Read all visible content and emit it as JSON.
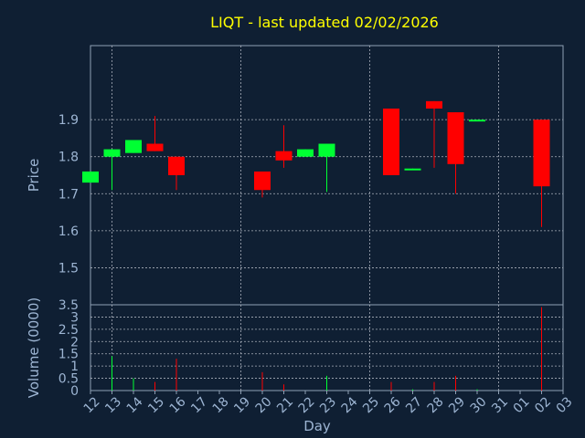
{
  "chart_data": {
    "type": "candlestick",
    "title": "LIQT - last updated 02/02/2026",
    "colors": {
      "background": "#0f1f33",
      "plot_background": "#0f1f33",
      "text_title": "#ffff00",
      "text_axis": "#9db5d3",
      "up": "#00ff33",
      "down": "#ff0000",
      "grid": "#aab0bb",
      "frame": "#8fa0b4"
    },
    "x_tick_labels": [
      "12",
      "13",
      "14",
      "15",
      "16",
      "17",
      "18",
      "19",
      "20",
      "21",
      "22",
      "23",
      "24",
      "25",
      "26",
      "27",
      "28",
      "29",
      "30",
      "31",
      "01",
      "02",
      "03"
    ],
    "xlabel": "Day",
    "price_panel": {
      "ylabel": "Price",
      "ylim": [
        1.4,
        2.1
      ],
      "yticks": [
        1.5,
        1.6,
        1.7,
        1.8,
        1.9
      ],
      "candles": [
        {
          "slot": 0,
          "open": 1.73,
          "close": 1.76,
          "high": 1.76,
          "low": 1.73
        },
        {
          "slot": 1,
          "open": 1.8,
          "close": 1.82,
          "high": 1.82,
          "low": 1.71
        },
        {
          "slot": 2,
          "open": 1.81,
          "close": 1.845,
          "high": 1.845,
          "low": 1.81
        },
        {
          "slot": 3,
          "open": 1.835,
          "close": 1.815,
          "high": 1.91,
          "low": 1.815
        },
        {
          "slot": 4,
          "open": 1.8,
          "close": 1.75,
          "high": 1.8,
          "low": 1.71
        },
        {
          "slot": 8,
          "open": 1.76,
          "close": 1.71,
          "high": 1.76,
          "low": 1.69
        },
        {
          "slot": 9,
          "open": 1.815,
          "close": 1.79,
          "high": 1.885,
          "low": 1.77
        },
        {
          "slot": 10,
          "open": 1.8,
          "close": 1.82,
          "high": 1.82,
          "low": 1.8
        },
        {
          "slot": 11,
          "open": 1.8,
          "close": 1.835,
          "high": 1.835,
          "low": 1.705
        },
        {
          "slot": 14,
          "open": 1.93,
          "close": 1.75,
          "high": 1.93,
          "low": 1.75
        },
        {
          "slot": 15,
          "open": 1.765,
          "close": 1.768,
          "high": 1.768,
          "low": 1.765
        },
        {
          "slot": 16,
          "open": 1.95,
          "close": 1.93,
          "high": 1.95,
          "low": 1.77
        },
        {
          "slot": 17,
          "open": 1.92,
          "close": 1.78,
          "high": 1.92,
          "low": 1.7
        },
        {
          "slot": 18,
          "open": 1.898,
          "close": 1.9,
          "high": 1.9,
          "low": 1.898
        },
        {
          "slot": 21,
          "open": 1.9,
          "close": 1.72,
          "high": 1.9,
          "low": 1.61
        }
      ]
    },
    "volume_panel": {
      "ylabel": "Volume (0000)",
      "ylim": [
        0,
        3.5
      ],
      "yticks": [
        0,
        0.5,
        1,
        1.5,
        2,
        2.5,
        3,
        3.5
      ],
      "ytick_labels": [
        "0",
        "0.5",
        "1",
        "1.5",
        "2",
        "2.5",
        "3",
        "3.5"
      ],
      "bars": [
        {
          "slot": 1,
          "value": 1.4,
          "dir": "up"
        },
        {
          "slot": 2,
          "value": 0.5,
          "dir": "up"
        },
        {
          "slot": 3,
          "value": 0.35,
          "dir": "down"
        },
        {
          "slot": 4,
          "value": 1.3,
          "dir": "down"
        },
        {
          "slot": 8,
          "value": 0.75,
          "dir": "down"
        },
        {
          "slot": 9,
          "value": 0.25,
          "dir": "down"
        },
        {
          "slot": 11,
          "value": 0.6,
          "dir": "up"
        },
        {
          "slot": 14,
          "value": 0.35,
          "dir": "down"
        },
        {
          "slot": 15,
          "value": 0.05,
          "dir": "up"
        },
        {
          "slot": 16,
          "value": 0.35,
          "dir": "down"
        },
        {
          "slot": 17,
          "value": 0.6,
          "dir": "down"
        },
        {
          "slot": 18,
          "value": 0.05,
          "dir": "up"
        },
        {
          "slot": 21,
          "value": 3.4,
          "dir": "down"
        }
      ]
    }
  }
}
